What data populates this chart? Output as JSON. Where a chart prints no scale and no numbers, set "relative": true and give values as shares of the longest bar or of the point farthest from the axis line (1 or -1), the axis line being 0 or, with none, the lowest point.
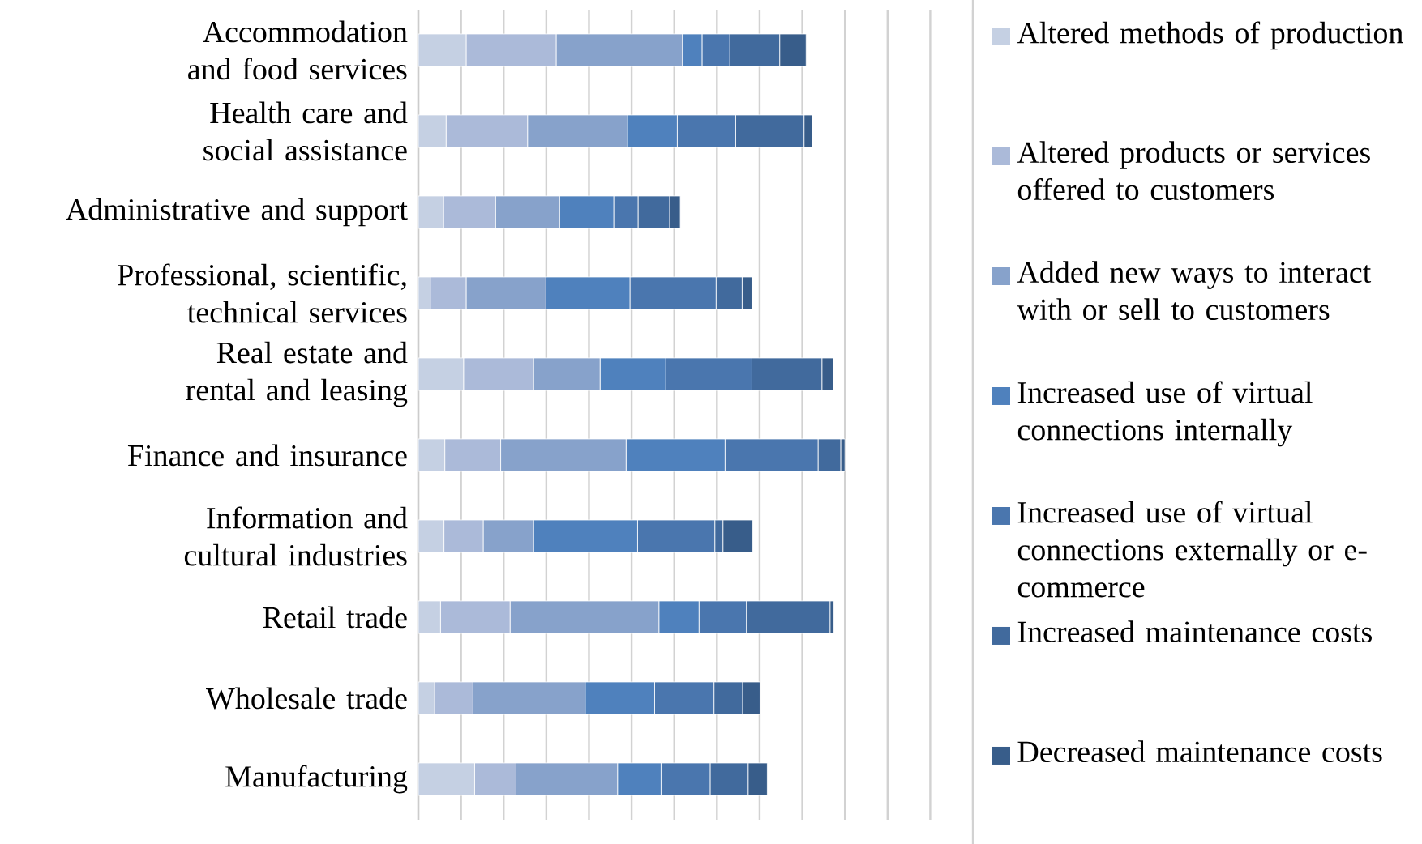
{
  "chart_data": {
    "type": "bar",
    "orientation": "horizontal",
    "stacked": true,
    "relative": true,
    "grid": "x",
    "legend": "right",
    "categories": [
      "Accommodation and food services",
      "Health care and social assistance",
      "Administrative and support",
      "Professional, scientific, technical services",
      "Real estate and rental and leasing",
      "Finance and insurance",
      "Information and cultural industries",
      "Retail trade",
      "Wholesale trade",
      "Manufacturing"
    ],
    "series": [
      {
        "name": "Altered methods of production",
        "color": "#c5d0e3",
        "values": [
          0.112,
          0.065,
          0.059,
          0.028,
          0.106,
          0.062,
          0.06,
          0.052,
          0.038,
          0.132
        ]
      },
      {
        "name": "Altered products or services offered to customers",
        "color": "#abbad9",
        "values": [
          0.211,
          0.191,
          0.122,
          0.084,
          0.164,
          0.131,
          0.092,
          0.163,
          0.09,
          0.097
        ]
      },
      {
        "name": "Added new ways to interact with or sell to customers",
        "color": "#87a2cb",
        "values": [
          0.296,
          0.234,
          0.15,
          0.187,
          0.156,
          0.294,
          0.118,
          0.349,
          0.263,
          0.238
        ]
      },
      {
        "name": "Increased use of virtual connections internally",
        "color": "#4f81bd",
        "values": [
          0.046,
          0.117,
          0.127,
          0.197,
          0.154,
          0.232,
          0.244,
          0.094,
          0.163,
          0.102
        ]
      },
      {
        "name": "Increased use of virtual connections externally or e-commerce",
        "color": "#4a76ae",
        "values": [
          0.065,
          0.137,
          0.057,
          0.202,
          0.202,
          0.218,
          0.181,
          0.111,
          0.139,
          0.115
        ]
      },
      {
        "name": "Increased maintenance costs",
        "color": "#416a9d",
        "values": [
          0.117,
          0.16,
          0.074,
          0.061,
          0.164,
          0.053,
          0.019,
          0.196,
          0.067,
          0.089
        ]
      },
      {
        "name": "Decreased maintenance costs",
        "color": "#385d8a",
        "values": [
          0.062,
          0.019,
          0.025,
          0.023,
          0.027,
          0.01,
          0.07,
          0.009,
          0.041,
          0.045
        ]
      }
    ]
  }
}
